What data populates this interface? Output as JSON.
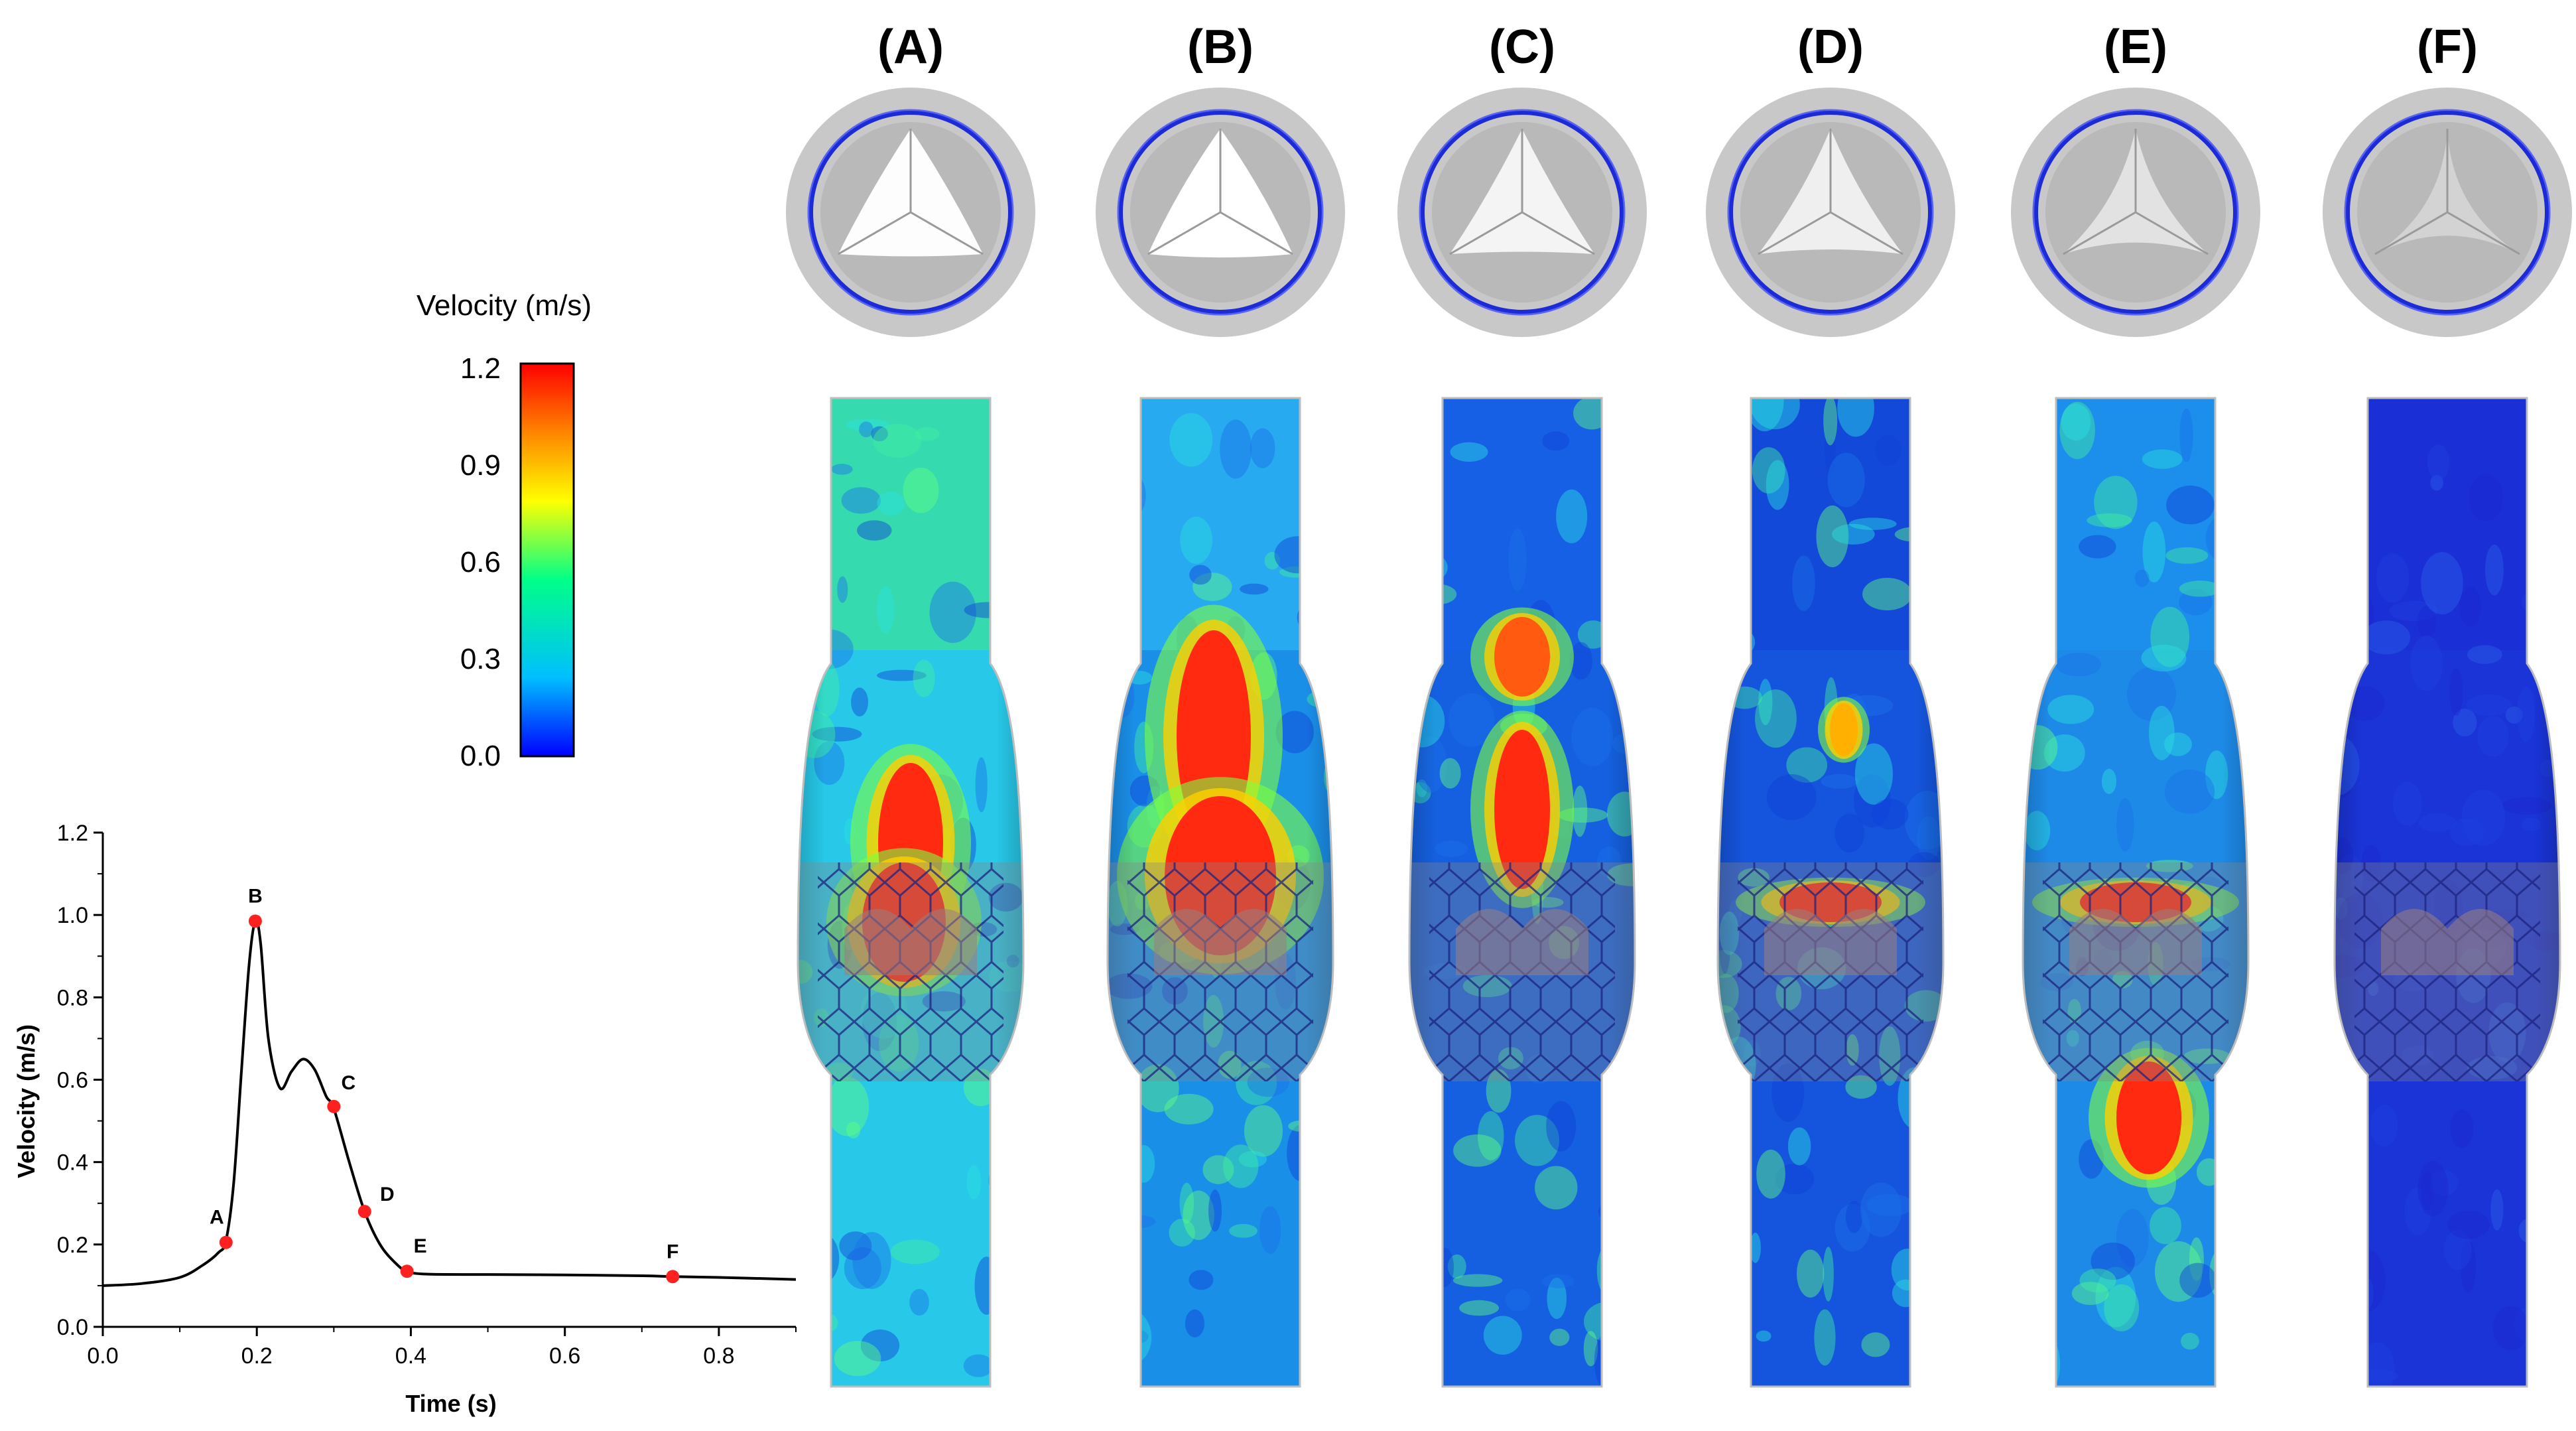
{
  "panels": [
    "(A)",
    "(B)",
    "(C)",
    "(D)",
    "(E)",
    "(F)"
  ],
  "colorbar": {
    "title": "Velocity (m/s)",
    "ticks": [
      "1.2",
      "0.9",
      "0.6",
      "0.3",
      "0.0"
    ],
    "min": 0.0,
    "max": 1.2,
    "colors": [
      "#0000ff",
      "#00bfff",
      "#00ff88",
      "#ffff00",
      "#ff8800",
      "#ff0000"
    ]
  },
  "chart_data": {
    "type": "line",
    "xlabel": "Time (s)",
    "ylabel": "Velocity (m/s)",
    "xlim": [
      0.0,
      0.9
    ],
    "ylim": [
      0.0,
      1.2
    ],
    "xticks": [
      "0.0",
      "0.2",
      "0.4",
      "0.6",
      "0.8"
    ],
    "yticks": [
      "0.0",
      "0.2",
      "0.4",
      "0.6",
      "0.8",
      "1.0",
      "1.2"
    ],
    "x": [
      0.0,
      0.05,
      0.1,
      0.13,
      0.15,
      0.16,
      0.17,
      0.18,
      0.19,
      0.198,
      0.205,
      0.215,
      0.23,
      0.245,
      0.26,
      0.275,
      0.29,
      0.3,
      0.32,
      0.34,
      0.36,
      0.38,
      0.395,
      0.42,
      0.5,
      0.6,
      0.7,
      0.74,
      0.8,
      0.9
    ],
    "y": [
      0.1,
      0.105,
      0.12,
      0.15,
      0.18,
      0.21,
      0.35,
      0.62,
      0.88,
      0.985,
      0.93,
      0.7,
      0.58,
      0.62,
      0.65,
      0.625,
      0.56,
      0.53,
      0.4,
      0.28,
      0.2,
      0.155,
      0.135,
      0.128,
      0.127,
      0.126,
      0.124,
      0.122,
      0.12,
      0.115
    ],
    "line_color": "#000000",
    "points": [
      {
        "label": "A",
        "x": 0.16,
        "y": 0.205
      },
      {
        "label": "B",
        "x": 0.198,
        "y": 0.985
      },
      {
        "label": "C",
        "x": 0.3,
        "y": 0.535
      },
      {
        "label": "D",
        "x": 0.34,
        "y": 0.28
      },
      {
        "label": "E",
        "x": 0.395,
        "y": 0.135
      },
      {
        "label": "F",
        "x": 0.74,
        "y": 0.122
      }
    ],
    "point_color": "#ff2020",
    "grid": false
  }
}
